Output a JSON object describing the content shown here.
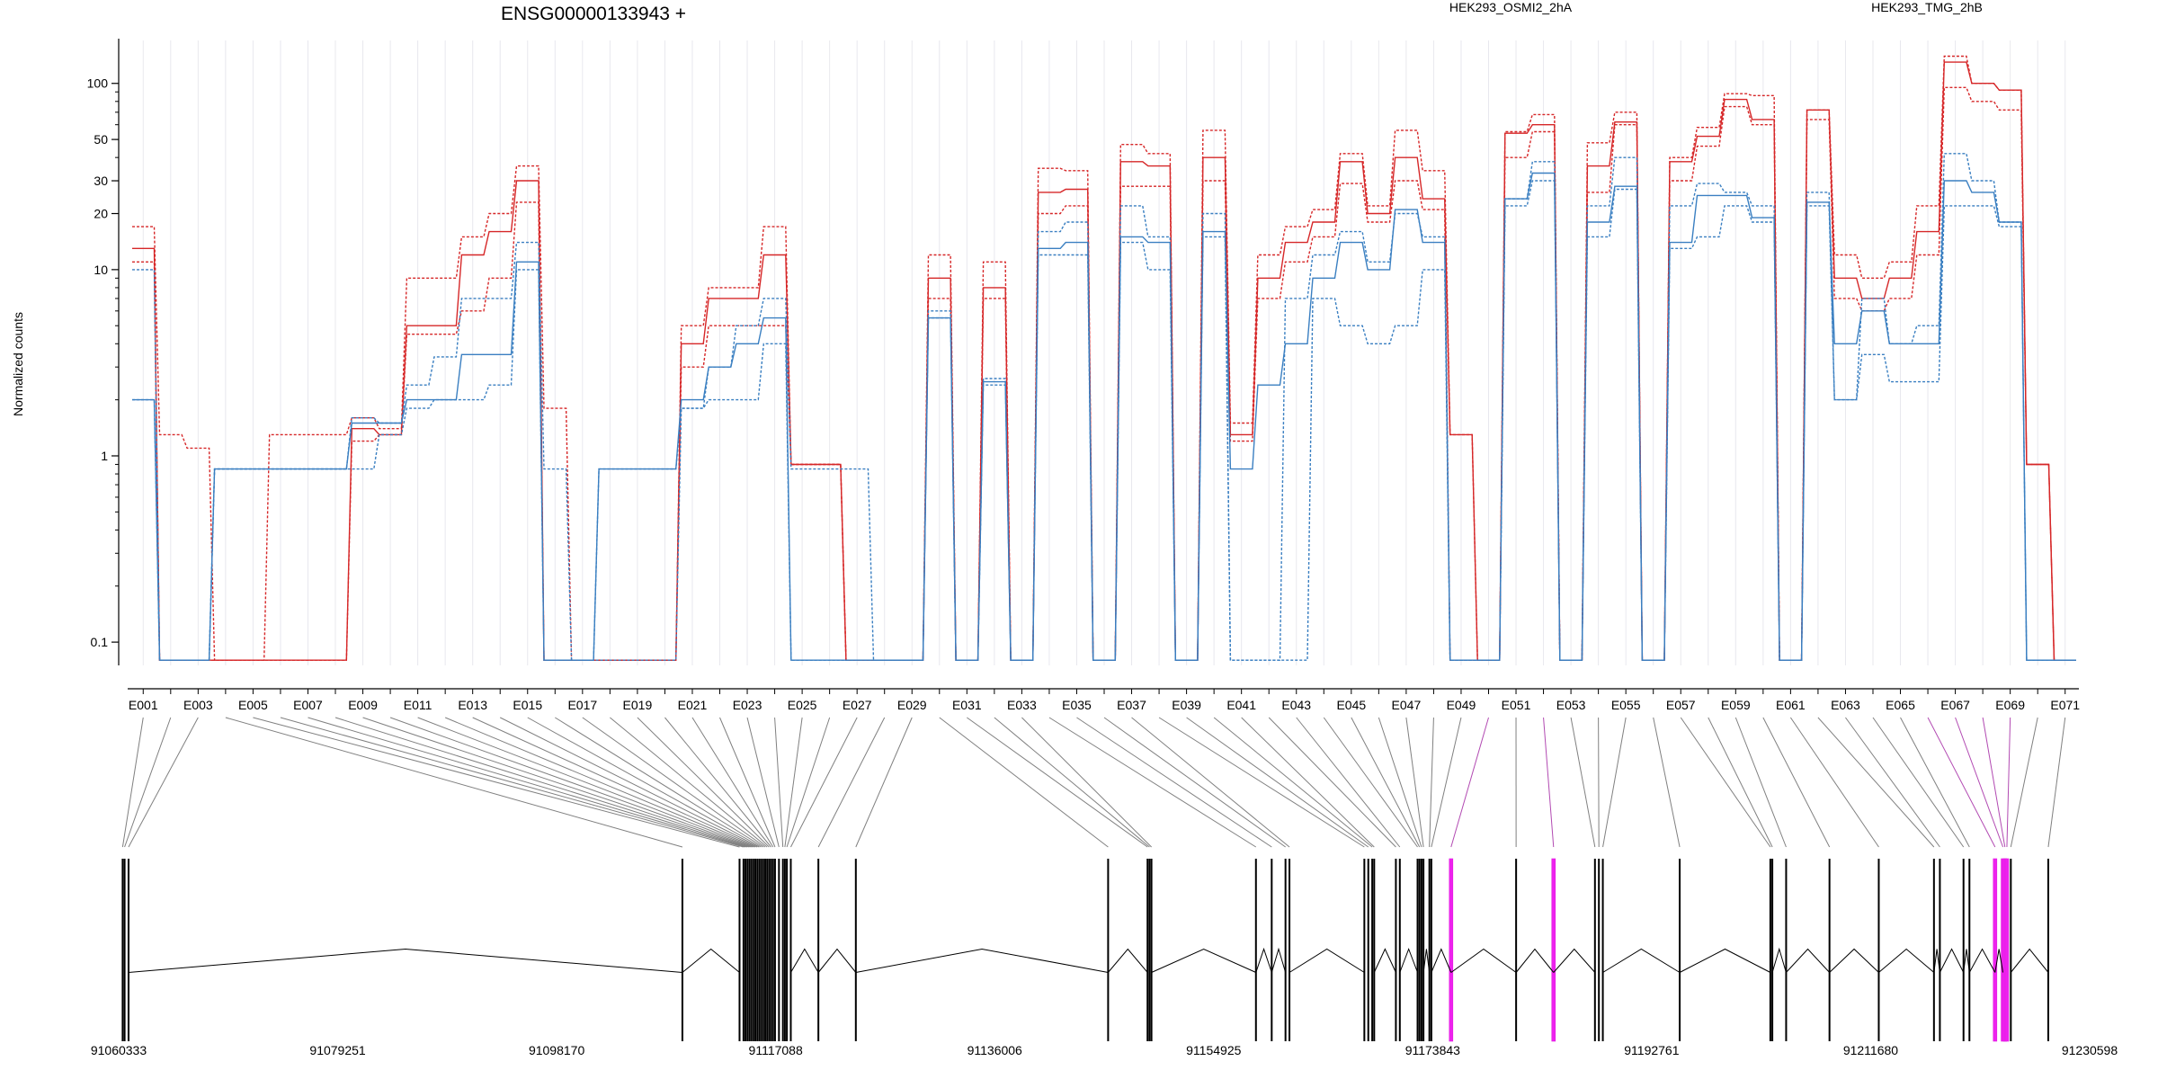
{
  "chart_data": {
    "type": "line",
    "title": "ENSG00000133943 +",
    "ylabel": "Normalized counts",
    "yscale": "log",
    "ylim": [
      0.075,
      170
    ],
    "y_ticks": [
      0.1,
      1,
      10,
      20,
      30,
      50,
      100
    ],
    "y_tick_labels": [
      "0.1",
      "1",
      "10",
      "20",
      "30",
      "50",
      "100"
    ],
    "exon_count": 71,
    "exon_tick_labels": [
      "E001",
      "E003",
      "E005",
      "E007",
      "E009",
      "E011",
      "E013",
      "E015",
      "E017",
      "E019",
      "E021",
      "E023",
      "E025",
      "E027",
      "E029",
      "E031",
      "E033",
      "E035",
      "E037",
      "E039",
      "E041",
      "E043",
      "E045",
      "E047",
      "E049",
      "E051",
      "E053",
      "E055",
      "E057",
      "E059",
      "E061",
      "E063",
      "E065",
      "E067",
      "E069",
      "E071"
    ],
    "genomic_ticks": [
      "91060333",
      "91079251",
      "91098170",
      "91117088",
      "91136006",
      "91154925",
      "91173843",
      "91192761",
      "91211680",
      "91230598"
    ],
    "genomic_range": [
      91060333,
      91230598
    ],
    "exons_highlighted": [
      "E050",
      "E052",
      "E066",
      "E067",
      "E068",
      "E069"
    ],
    "series": [
      {
        "name": "HEK293_OSMI2_2hA",
        "color": "#d62728",
        "style": "dashed",
        "values": [
          17,
          1.3,
          1.1,
          0.08,
          0.08,
          1.3,
          1.3,
          1.3,
          1.6,
          1.4,
          9,
          9,
          15,
          20,
          36,
          1.8,
          0.08,
          0.08,
          0.08,
          0.08,
          5,
          8,
          8,
          17,
          0.9,
          0.9,
          0.08,
          0.08,
          0.08,
          12,
          0.08,
          11,
          0.08,
          35,
          34,
          0.08,
          47,
          42,
          0.08,
          56,
          1.5,
          12,
          17,
          21,
          42,
          22,
          56,
          34,
          1.3,
          0.08,
          55,
          68,
          0.08,
          48,
          70,
          0.08,
          40,
          58,
          88,
          86,
          0.08,
          72,
          12,
          9,
          11,
          22,
          140,
          100,
          92,
          0.9,
          0.08
        ]
      },
      {
        "name": "HEK293_OSMI2_2hA",
        "color": "#d62728",
        "style": "solid",
        "values": [
          13,
          0.08,
          0.08,
          0.08,
          0.08,
          0.08,
          0.08,
          0.08,
          1.4,
          1.3,
          5,
          5,
          12,
          16,
          30,
          0.08,
          0.08,
          0.08,
          0.08,
          0.08,
          4,
          7,
          7,
          12,
          0.9,
          0.9,
          0.08,
          0.08,
          0.08,
          9,
          0.08,
          8,
          0.08,
          26,
          27,
          0.08,
          38,
          36,
          0.08,
          40,
          1.3,
          9,
          14,
          18,
          38,
          20,
          40,
          24,
          1.3,
          0.08,
          54,
          60,
          0.08,
          36,
          62,
          0.08,
          38,
          52,
          82,
          64,
          0.08,
          72,
          9,
          7,
          9,
          16,
          130,
          100,
          92,
          0.9,
          0.08
        ]
      },
      {
        "name": "HEK293_OSMI2_2hA",
        "color": "#d62728",
        "style": "dashed",
        "values": [
          11,
          0.08,
          0.08,
          0.08,
          0.08,
          0.08,
          0.08,
          0.08,
          1.2,
          1.3,
          4.5,
          4.5,
          6,
          9,
          23,
          0.08,
          0.08,
          0.08,
          0.08,
          0.08,
          3,
          5,
          5,
          5,
          0.9,
          0.9,
          0.08,
          0.08,
          0.08,
          7,
          0.08,
          7,
          0.08,
          20,
          22,
          0.08,
          28,
          28,
          0.08,
          30,
          1.2,
          7,
          11,
          15,
          29,
          18,
          30,
          21,
          0.08,
          0.08,
          40,
          55,
          0.08,
          26,
          60,
          0.08,
          30,
          46,
          75,
          60,
          0.08,
          64,
          7,
          6,
          7,
          12,
          95,
          80,
          72,
          0.9,
          0.08
        ]
      },
      {
        "name": "HEK293_TMG_2hB",
        "color": "#3a7fc1",
        "style": "dashed",
        "values": [
          10,
          0.08,
          0.08,
          0.85,
          0.85,
          0.85,
          0.85,
          0.85,
          1.6,
          1.5,
          2.4,
          3.4,
          7,
          7,
          14,
          0.85,
          0.08,
          0.85,
          0.85,
          0.85,
          1.8,
          3,
          5,
          7,
          0.85,
          0.85,
          0.85,
          0.08,
          0.08,
          6,
          0.08,
          2.6,
          0.08,
          16,
          18,
          0.08,
          22,
          15,
          0.08,
          20,
          0.08,
          0.08,
          7,
          12,
          16,
          11,
          20,
          15,
          0.08,
          0.08,
          24,
          38,
          0.08,
          22,
          40,
          0.08,
          22,
          29,
          26,
          22,
          0.08,
          26,
          2,
          7,
          4,
          5,
          42,
          30,
          18,
          0.08,
          0.08
        ]
      },
      {
        "name": "HEK293_TMG_2hB",
        "color": "#3a7fc1",
        "style": "solid",
        "values": [
          2,
          0.08,
          0.08,
          0.85,
          0.85,
          0.85,
          0.85,
          0.85,
          1.5,
          1.5,
          2,
          2,
          3.5,
          3.5,
          11,
          0.08,
          0.08,
          0.85,
          0.85,
          0.85,
          2,
          3,
          4,
          5.5,
          0.08,
          0.08,
          0.08,
          0.08,
          0.08,
          5.5,
          0.08,
          2.5,
          0.08,
          13,
          14,
          0.08,
          15,
          14,
          0.08,
          16,
          0.85,
          2.4,
          4,
          9,
          14,
          10,
          21,
          14,
          0.08,
          0.08,
          24,
          33,
          0.08,
          18,
          28,
          0.08,
          14,
          25,
          25,
          19,
          0.08,
          23,
          4,
          6,
          4,
          4,
          30,
          26,
          18,
          0.08,
          0.08
        ]
      },
      {
        "name": "HEK293_TMG_2hB",
        "color": "#3a7fc1",
        "style": "dashed",
        "values": [
          2,
          0.08,
          0.08,
          0.85,
          0.85,
          0.85,
          0.85,
          0.85,
          0.85,
          1.3,
          1.8,
          2,
          2,
          2.4,
          10,
          0.08,
          0.08,
          0.08,
          0.08,
          0.08,
          1.8,
          2,
          2,
          4,
          0.08,
          0.08,
          0.08,
          0.08,
          0.08,
          5.5,
          0.08,
          2.4,
          0.08,
          12,
          12,
          0.08,
          14,
          10,
          0.08,
          15,
          0.08,
          0.08,
          0.08,
          7,
          5,
          4,
          5,
          10,
          0.08,
          0.08,
          22,
          30,
          0.08,
          15,
          27,
          0.08,
          13,
          15,
          22,
          18,
          0.08,
          22,
          2,
          3.5,
          2.5,
          2.5,
          22,
          22,
          17,
          0.08,
          0.08
        ]
      }
    ]
  }
}
